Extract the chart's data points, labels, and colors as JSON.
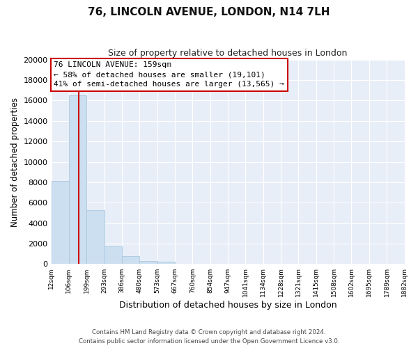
{
  "title": "76, LINCOLN AVENUE, LONDON, N14 7LH",
  "subtitle": "Size of property relative to detached houses in London",
  "xlabel": "Distribution of detached houses by size in London",
  "ylabel": "Number of detached properties",
  "bar_values": [
    8100,
    16500,
    5300,
    1750,
    750,
    275,
    250,
    0,
    0,
    0,
    0,
    0,
    0,
    0,
    0,
    0,
    0,
    0,
    0,
    0
  ],
  "bar_labels": [
    "12sqm",
    "106sqm",
    "199sqm",
    "293sqm",
    "386sqm",
    "480sqm",
    "573sqm",
    "667sqm",
    "760sqm",
    "854sqm",
    "947sqm",
    "1041sqm",
    "1134sqm",
    "1228sqm",
    "1321sqm",
    "1415sqm",
    "1508sqm",
    "1602sqm",
    "1695sqm",
    "1789sqm",
    "1882sqm"
  ],
  "bar_color": "#ccdff0",
  "bar_edge_color": "#aac8e0",
  "vline_color": "#cc0000",
  "annotation_title": "76 LINCOLN AVENUE: 159sqm",
  "annotation_line1": "← 58% of detached houses are smaller (19,101)",
  "annotation_line2": "41% of semi-detached houses are larger (13,565) →",
  "annotation_box_color": "#ffffff",
  "annotation_box_edge": "#cc0000",
  "ylim": [
    0,
    20000
  ],
  "yticks": [
    0,
    2000,
    4000,
    6000,
    8000,
    10000,
    12000,
    14000,
    16000,
    18000,
    20000
  ],
  "footer_line1": "Contains HM Land Registry data © Crown copyright and database right 2024.",
  "footer_line2": "Contains public sector information licensed under the Open Government Licence v3.0.",
  "bg_color": "#ffffff",
  "plot_bg_color": "#e8eef8",
  "grid_color": "#ffffff"
}
